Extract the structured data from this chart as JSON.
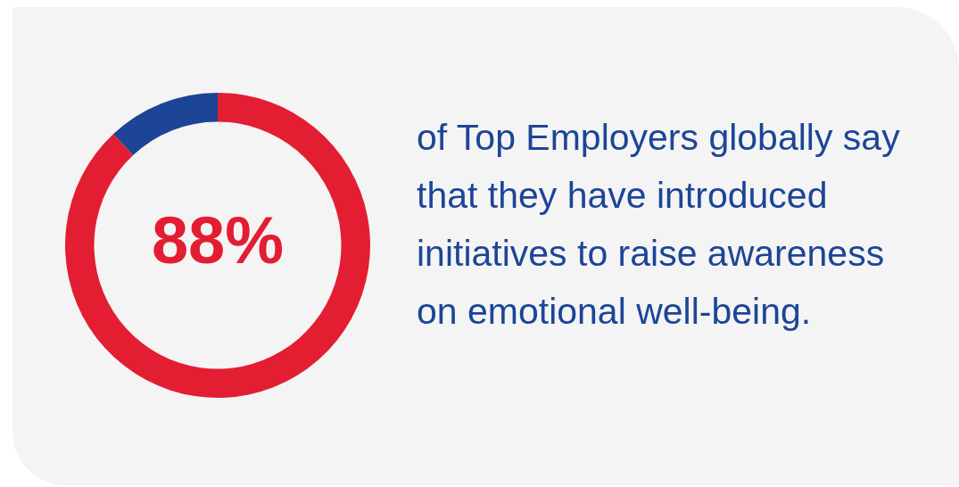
{
  "chart_data": {
    "type": "donut",
    "categories": [
      null,
      null
    ],
    "values": [
      88,
      12
    ],
    "colors": [
      "#e31e32",
      "#1c4597"
    ],
    "value_labels": [
      "88%",
      null
    ],
    "annotations": [
      "of Top Employers globally say that they have introduced initiatives to raise awareness on emotional well-being."
    ]
  }
}
